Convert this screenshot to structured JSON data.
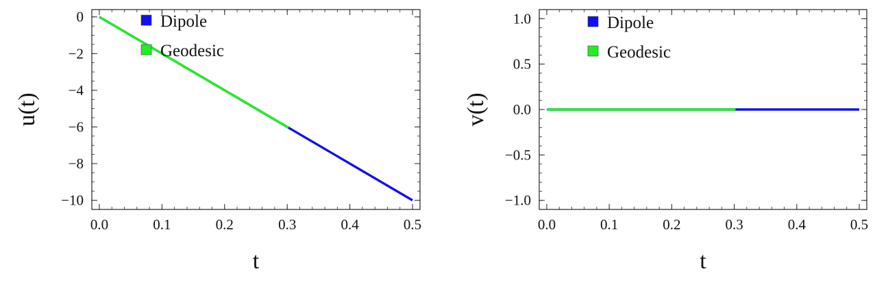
{
  "chart_data": [
    {
      "type": "line",
      "title": "",
      "xlabel": "t",
      "ylabel": "u(t)",
      "xlim": [
        -0.012,
        0.512
      ],
      "ylim": [
        -10.5,
        0.4
      ],
      "xticks": [
        0.0,
        0.1,
        0.2,
        0.3,
        0.4,
        0.5
      ],
      "xtick_labels": [
        "0.0",
        "0.1",
        "0.2",
        "0.3",
        "0.4",
        "0.5"
      ],
      "yticks": [
        0,
        -2,
        -4,
        -6,
        -8,
        -10
      ],
      "ytick_labels": [
        "0",
        "−2",
        "−4",
        "−6",
        "−8",
        "−10"
      ],
      "grid": false,
      "legend_position": "top-left",
      "series": [
        {
          "name": "Dipole",
          "color": "#1010ee",
          "x": [
            0.0,
            0.5
          ],
          "y": [
            0.0,
            -10.0
          ]
        },
        {
          "name": "Geodesic",
          "color": "#22ee22",
          "x": [
            0.0,
            0.302
          ],
          "y": [
            0.0,
            -6.04
          ]
        }
      ]
    },
    {
      "type": "line",
      "title": "",
      "xlabel": "t",
      "ylabel": "v(t)",
      "xlim": [
        -0.012,
        0.512
      ],
      "ylim": [
        -1.1,
        1.1
      ],
      "xticks": [
        0.0,
        0.1,
        0.2,
        0.3,
        0.4,
        0.5
      ],
      "xtick_labels": [
        "0.0",
        "0.1",
        "0.2",
        "0.3",
        "0.4",
        "0.5"
      ],
      "yticks": [
        1.0,
        0.5,
        0.0,
        -0.5,
        -1.0
      ],
      "ytick_labels": [
        "1.0",
        "0.5",
        "0.0",
        "−0.5",
        "−1.0"
      ],
      "grid": false,
      "legend_position": "top-left",
      "series": [
        {
          "name": "Dipole",
          "color": "#1010ee",
          "x": [
            0.0,
            0.5
          ],
          "y": [
            0.0,
            0.0
          ]
        },
        {
          "name": "Geodesic",
          "color": "#22ee22",
          "x": [
            0.0,
            0.302
          ],
          "y": [
            0.0,
            0.0
          ]
        }
      ]
    }
  ]
}
